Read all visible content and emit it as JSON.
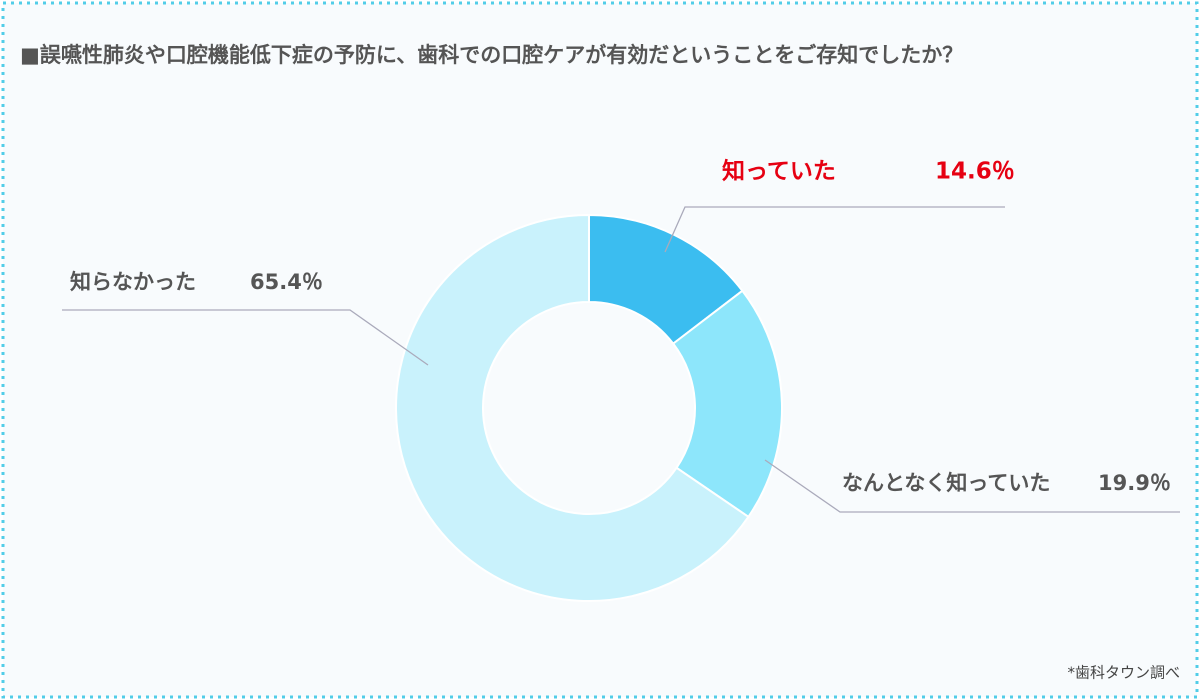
{
  "chart_data": {
    "type": "donut",
    "title": "■誤嚥性肺炎や口腔機能低下症の予防に、歯科での口腔ケアが有効だということをご存知でしたか？",
    "categories": [
      "知っていた",
      "なんとなく知っていた",
      "知らなかった"
    ],
    "values": [
      14.6,
      19.9,
      65.4
    ],
    "value_labels": [
      "14.6％",
      "19.9％",
      "65.4％"
    ],
    "colors": [
      "#3bbdf0",
      "#8de6fb",
      "#c9f2fc"
    ],
    "source": "*歯科タウン調べ"
  }
}
